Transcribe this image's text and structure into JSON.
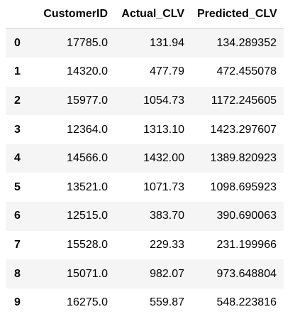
{
  "dataframe": {
    "columns": [
      "",
      "CustomerID",
      "Actual_CLV",
      "Predicted_CLV"
    ],
    "rows": [
      {
        "index": "0",
        "CustomerID": "17785.0",
        "Actual_CLV": "131.94",
        "Predicted_CLV": "134.289352"
      },
      {
        "index": "1",
        "CustomerID": "14320.0",
        "Actual_CLV": "477.79",
        "Predicted_CLV": "472.455078"
      },
      {
        "index": "2",
        "CustomerID": "15977.0",
        "Actual_CLV": "1054.73",
        "Predicted_CLV": "1172.245605"
      },
      {
        "index": "3",
        "CustomerID": "12364.0",
        "Actual_CLV": "1313.10",
        "Predicted_CLV": "1423.297607"
      },
      {
        "index": "4",
        "CustomerID": "14566.0",
        "Actual_CLV": "1432.00",
        "Predicted_CLV": "1389.820923"
      },
      {
        "index": "5",
        "CustomerID": "13521.0",
        "Actual_CLV": "1071.73",
        "Predicted_CLV": "1098.695923"
      },
      {
        "index": "6",
        "CustomerID": "12515.0",
        "Actual_CLV": "383.70",
        "Predicted_CLV": "390.690063"
      },
      {
        "index": "7",
        "CustomerID": "15528.0",
        "Actual_CLV": "229.33",
        "Predicted_CLV": "231.199966"
      },
      {
        "index": "8",
        "CustomerID": "15071.0",
        "Actual_CLV": "982.07",
        "Predicted_CLV": "973.648804"
      },
      {
        "index": "9",
        "CustomerID": "16275.0",
        "Actual_CLV": "559.87",
        "Predicted_CLV": "548.223816"
      }
    ]
  },
  "colors": {
    "stripe": "#f5f5f5",
    "header_border": "#cfcfcf",
    "text": "#000000"
  }
}
